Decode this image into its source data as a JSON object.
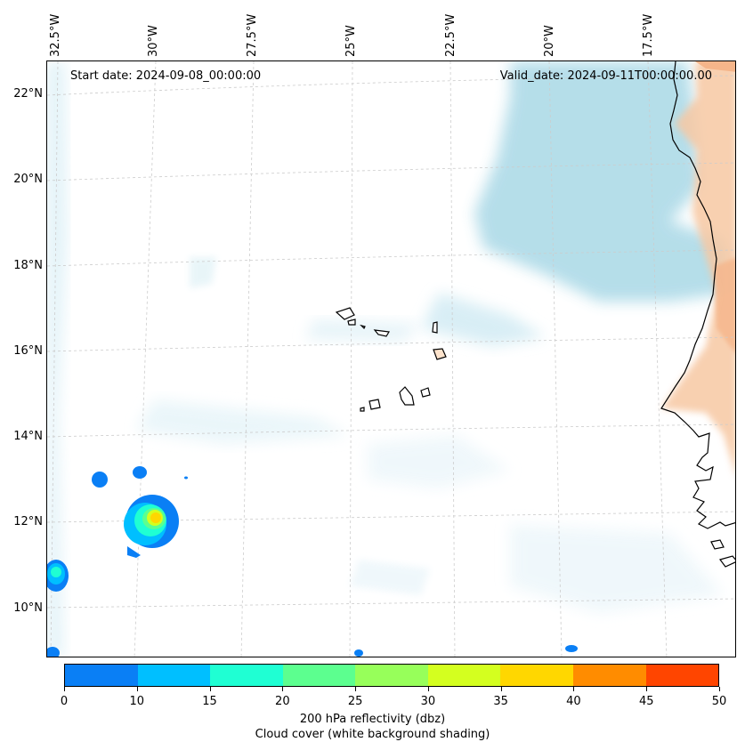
{
  "header": {
    "start_date": "Start date: 2024-09-08_00:00:00",
    "valid_date": "Valid_date: 2024-09-11T00:00:00.00"
  },
  "axes": {
    "lat_labels": [
      "22°N",
      "20°N",
      "18°N",
      "16°N",
      "14°N",
      "12°N",
      "10°N"
    ],
    "lon_labels": [
      "32.5°W",
      "30°W",
      "27.5°W",
      "25°W",
      "22.5°W",
      "20°W",
      "17.5°W"
    ]
  },
  "colorbar": {
    "ticks": [
      "0",
      "10",
      "15",
      "20",
      "25",
      "30",
      "35",
      "40",
      "45",
      "50"
    ],
    "colors": [
      "#0a7ff5",
      "#00bfff",
      "#1fffd3",
      "#5cff8f",
      "#97ff5a",
      "#d4ff1f",
      "#ffd700",
      "#ff8c00",
      "#ff4500"
    ],
    "label_line1": "200 hPa reflectivity (dbz)",
    "label_line2": "Cloud cover (white background shading)"
  },
  "map_colors": {
    "cloud": "#a9d8e6",
    "land_warm": "#f7c8a3",
    "coastline": "#000000",
    "grid": "#cccccc"
  }
}
